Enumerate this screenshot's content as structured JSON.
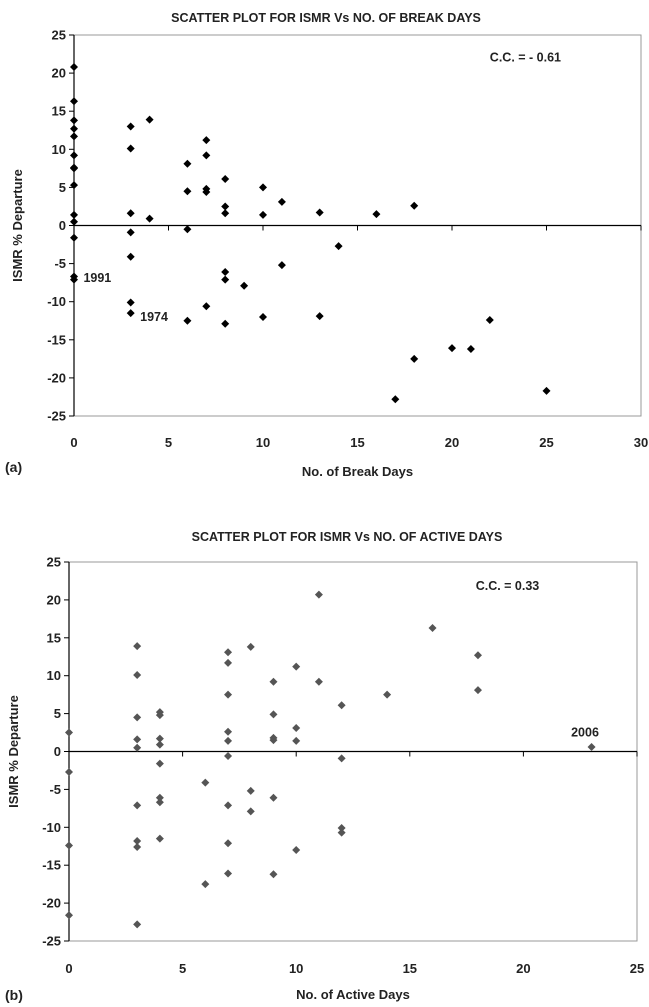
{
  "chart_data": [
    {
      "type": "scatter",
      "panel_label": "(a)",
      "title": "SCATTER PLOT FOR ISMR Vs NO. OF BREAK DAYS",
      "xlabel": "No. of Break Days",
      "ylabel": "ISMR % Departure",
      "xlim": [
        0,
        30
      ],
      "ylim": [
        -25,
        25
      ],
      "xticks": [
        0,
        5,
        10,
        15,
        20,
        25,
        30
      ],
      "yticks": [
        25,
        20,
        15,
        10,
        5,
        0,
        -5,
        -10,
        -15,
        -20,
        -25
      ],
      "marker_color": "#000000",
      "annotations": [
        {
          "text": "C.C. = - 0.61",
          "x": 22,
          "y": 21.5
        },
        {
          "text": "1991",
          "x": 0.5,
          "y": -7.4
        },
        {
          "text": "1974",
          "x": 3.5,
          "y": -12.5
        }
      ],
      "points": [
        [
          0,
          20.8
        ],
        [
          0,
          16.3
        ],
        [
          0,
          13.8
        ],
        [
          0,
          12.7
        ],
        [
          0,
          11.7
        ],
        [
          0,
          9.2
        ],
        [
          0,
          7.6
        ],
        [
          0,
          7.5
        ],
        [
          0,
          5.3
        ],
        [
          0,
          1.4
        ],
        [
          0,
          0.5
        ],
        [
          0,
          -1.6
        ],
        [
          0,
          -6.7
        ],
        [
          0,
          -7.1
        ],
        [
          3,
          13
        ],
        [
          3,
          10.1
        ],
        [
          3,
          1.6
        ],
        [
          3,
          -0.9
        ],
        [
          3,
          -4.1
        ],
        [
          3,
          -10.1
        ],
        [
          3,
          -11.5
        ],
        [
          4,
          13.9
        ],
        [
          4,
          0.9
        ],
        [
          6,
          8.1
        ],
        [
          6,
          4.5
        ],
        [
          6,
          -0.5
        ],
        [
          6,
          -12.5
        ],
        [
          7,
          11.2
        ],
        [
          7,
          9.2
        ],
        [
          7,
          4.8
        ],
        [
          7,
          4.4
        ],
        [
          7,
          -10.6
        ],
        [
          8,
          6.1
        ],
        [
          8,
          2.5
        ],
        [
          8,
          1.6
        ],
        [
          8,
          -6.1
        ],
        [
          8,
          -7.1
        ],
        [
          8,
          -12.9
        ],
        [
          9,
          -7.9
        ],
        [
          10,
          5
        ],
        [
          10,
          1.4
        ],
        [
          10,
          -12
        ],
        [
          11,
          3.1
        ],
        [
          11,
          -5.2
        ],
        [
          13,
          1.7
        ],
        [
          13,
          -11.9
        ],
        [
          14,
          -2.7
        ],
        [
          16,
          1.5
        ],
        [
          17,
          -22.8
        ],
        [
          18,
          2.6
        ],
        [
          18,
          -17.5
        ],
        [
          20,
          -16.1
        ],
        [
          21,
          -16.2
        ],
        [
          22,
          -12.4
        ],
        [
          25,
          -21.7
        ]
      ]
    },
    {
      "type": "scatter",
      "panel_label": "(b)",
      "title": "SCATTER PLOT FOR ISMR Vs NO. OF ACTIVE DAYS",
      "xlabel": "No. of Active Days",
      "ylabel": "ISMR % Departure",
      "xlim": [
        0,
        25
      ],
      "ylim": [
        -25,
        25
      ],
      "xticks": [
        0,
        5,
        10,
        15,
        20,
        25
      ],
      "yticks": [
        25,
        20,
        15,
        10,
        5,
        0,
        -5,
        -10,
        -15,
        -20,
        -25
      ],
      "marker_color": "#555555",
      "annotations": [
        {
          "text": "C.C. = 0.33",
          "x": 17.9,
          "y": 21.3
        },
        {
          "text": "2006",
          "x": 22.1,
          "y": 2.0
        }
      ],
      "points": [
        [
          0,
          2.5
        ],
        [
          0,
          -2.7
        ],
        [
          0,
          -12.4
        ],
        [
          0,
          -21.6
        ],
        [
          3,
          13.9
        ],
        [
          3,
          10.1
        ],
        [
          3,
          4.5
        ],
        [
          3,
          1.6
        ],
        [
          3,
          0.5
        ],
        [
          3,
          -7.1
        ],
        [
          3,
          -11.8
        ],
        [
          3,
          -12.6
        ],
        [
          3,
          -22.8
        ],
        [
          4,
          5.2
        ],
        [
          4,
          4.8
        ],
        [
          4,
          1.7
        ],
        [
          4,
          0.9
        ],
        [
          4,
          -1.6
        ],
        [
          4,
          -6.1
        ],
        [
          4,
          -6.7
        ],
        [
          4,
          -11.5
        ],
        [
          6,
          -4.1
        ],
        [
          6,
          -17.5
        ],
        [
          7,
          13.1
        ],
        [
          7,
          11.7
        ],
        [
          7,
          7.5
        ],
        [
          7,
          2.6
        ],
        [
          7,
          1.4
        ],
        [
          7,
          -0.6
        ],
        [
          7,
          -7.1
        ],
        [
          7,
          -12.1
        ],
        [
          7,
          -16.1
        ],
        [
          8,
          13.8
        ],
        [
          8,
          -5.2
        ],
        [
          8,
          -7.9
        ],
        [
          9,
          9.2
        ],
        [
          9,
          4.9
        ],
        [
          9,
          1.8
        ],
        [
          9,
          1.5
        ],
        [
          9,
          -6.1
        ],
        [
          9,
          -16.2
        ],
        [
          10,
          11.2
        ],
        [
          10,
          3.1
        ],
        [
          10,
          1.4
        ],
        [
          10,
          -13
        ],
        [
          11,
          20.7
        ],
        [
          11,
          9.2
        ],
        [
          12,
          6.1
        ],
        [
          12,
          -0.9
        ],
        [
          12,
          -10.1
        ],
        [
          12,
          -10.7
        ],
        [
          14,
          7.5
        ],
        [
          16,
          16.3
        ],
        [
          18,
          12.7
        ],
        [
          18,
          8.1
        ],
        [
          23,
          0.6
        ]
      ]
    }
  ]
}
